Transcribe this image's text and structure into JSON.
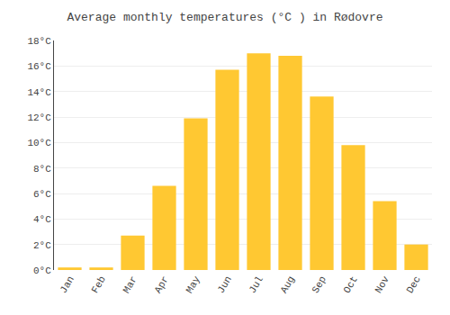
{
  "chart_data": {
    "type": "bar",
    "title": "Average monthly temperatures (°C ) in Rødovre",
    "categories": [
      "Jan",
      "Feb",
      "Mar",
      "Apr",
      "May",
      "Jun",
      "Jul",
      "Aug",
      "Sep",
      "Oct",
      "Nov",
      "Dec"
    ],
    "values": [
      0.2,
      0.2,
      2.7,
      6.6,
      11.9,
      15.7,
      17.0,
      16.8,
      13.6,
      9.8,
      5.4,
      2.0
    ],
    "color": "#FFC832",
    "ylim": [
      0,
      18
    ],
    "yticks": [
      {
        "value": 0,
        "label": "0°C"
      },
      {
        "value": 2,
        "label": "2°C"
      },
      {
        "value": 4,
        "label": "4°C"
      },
      {
        "value": 6,
        "label": "6°C"
      },
      {
        "value": 8,
        "label": "8°C"
      },
      {
        "value": 10,
        "label": "10°C"
      },
      {
        "value": 12,
        "label": "12°C"
      },
      {
        "value": 14,
        "label": "14°C"
      },
      {
        "value": 16,
        "label": "16°C"
      },
      {
        "value": 18,
        "label": "18°C"
      }
    ],
    "grid": true
  }
}
